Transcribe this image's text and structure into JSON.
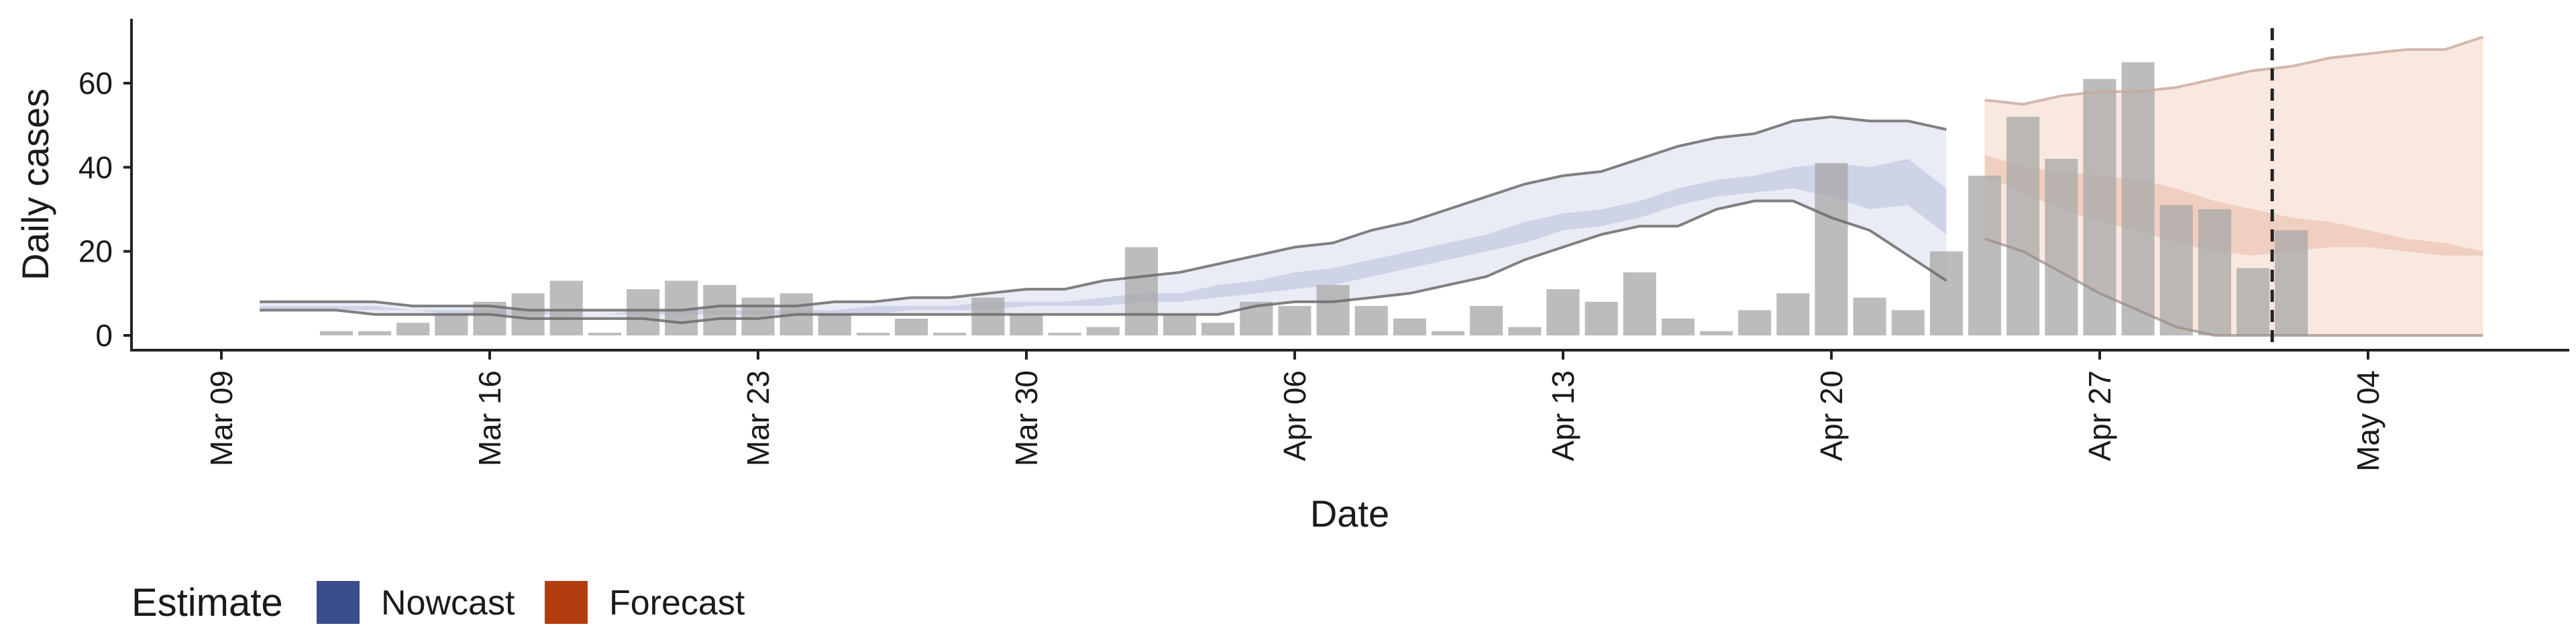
{
  "chart_data": {
    "type": "bar",
    "xlabel": "Date",
    "ylabel": "Daily cases",
    "x_ticks": [
      "Mar 09",
      "Mar 16",
      "Mar 23",
      "Mar 30",
      "Apr 06",
      "Apr 13",
      "Apr 20",
      "Apr 27",
      "May 04"
    ],
    "y_ticks": [
      0,
      20,
      40,
      60
    ],
    "xlim": [
      "2020-03-09",
      "2020-05-07"
    ],
    "ylim": [
      -3,
      75
    ],
    "grid": false,
    "forecast_date": "2020-05-01",
    "legend": {
      "title": "Estimate",
      "position": "bottom-left",
      "items": [
        {
          "label": "Nowcast",
          "color": "#3B4E8C"
        },
        {
          "label": "Forecast",
          "color": "#B33D0E"
        }
      ]
    },
    "bars": {
      "color": "#A9A9A9",
      "dates": [
        "2020-03-12",
        "2020-03-13",
        "2020-03-14",
        "2020-03-15",
        "2020-03-16",
        "2020-03-17",
        "2020-03-18",
        "2020-03-19",
        "2020-03-20",
        "2020-03-21",
        "2020-03-22",
        "2020-03-23",
        "2020-03-24",
        "2020-03-25",
        "2020-03-26",
        "2020-03-27",
        "2020-03-28",
        "2020-03-29",
        "2020-03-30",
        "2020-03-31",
        "2020-04-01",
        "2020-04-02",
        "2020-04-03",
        "2020-04-04",
        "2020-04-05",
        "2020-04-06",
        "2020-04-07",
        "2020-04-08",
        "2020-04-09",
        "2020-04-10",
        "2020-04-11",
        "2020-04-12",
        "2020-04-13",
        "2020-04-14",
        "2020-04-15",
        "2020-04-16",
        "2020-04-17",
        "2020-04-18",
        "2020-04-19",
        "2020-04-20",
        "2020-04-21",
        "2020-04-22",
        "2020-04-23",
        "2020-04-24",
        "2020-04-25",
        "2020-04-26",
        "2020-04-27",
        "2020-04-28",
        "2020-04-29",
        "2020-04-30",
        "2020-05-01",
        "2020-05-02"
      ],
      "values": [
        1,
        1,
        3,
        5,
        8,
        10,
        13,
        0,
        11,
        13,
        12,
        9,
        10,
        5,
        0,
        4,
        0,
        9,
        5,
        0,
        2,
        21,
        5,
        3,
        8,
        7,
        12,
        7,
        4,
        1,
        7,
        2,
        11,
        8,
        15,
        4,
        1,
        6,
        10,
        41,
        9,
        6,
        20,
        38,
        52,
        42,
        61,
        65,
        31,
        30,
        16,
        25
      ]
    },
    "series": [
      {
        "name": "Nowcast",
        "dates": [
          "2020-03-10",
          "2020-03-11",
          "2020-03-12",
          "2020-03-13",
          "2020-03-14",
          "2020-03-15",
          "2020-03-16",
          "2020-03-17",
          "2020-03-18",
          "2020-03-19",
          "2020-03-20",
          "2020-03-21",
          "2020-03-22",
          "2020-03-23",
          "2020-03-24",
          "2020-03-25",
          "2020-03-26",
          "2020-03-27",
          "2020-03-28",
          "2020-03-29",
          "2020-03-30",
          "2020-03-31",
          "2020-04-01",
          "2020-04-02",
          "2020-04-03",
          "2020-04-04",
          "2020-04-05",
          "2020-04-06",
          "2020-04-07",
          "2020-04-08",
          "2020-04-09",
          "2020-04-10",
          "2020-04-11",
          "2020-04-12",
          "2020-04-13",
          "2020-04-14",
          "2020-04-15",
          "2020-04-16",
          "2020-04-17",
          "2020-04-18",
          "2020-04-19",
          "2020-04-20",
          "2020-04-21",
          "2020-04-22",
          "2020-04-23"
        ],
        "upper90": [
          8,
          8,
          8,
          8,
          7,
          7,
          7,
          6,
          6,
          6,
          6,
          6,
          7,
          7,
          7,
          8,
          8,
          9,
          9,
          10,
          11,
          11,
          13,
          14,
          15,
          17,
          19,
          21,
          22,
          25,
          27,
          30,
          33,
          36,
          38,
          39,
          42,
          45,
          47,
          48,
          51,
          52,
          51,
          51,
          49
        ],
        "upper50": [
          7,
          7,
          7,
          7,
          6,
          6,
          6,
          6,
          5,
          5,
          6,
          6,
          6,
          6,
          6,
          6,
          7,
          7,
          7,
          8,
          8,
          8,
          9,
          10,
          10,
          12,
          13,
          15,
          16,
          18,
          20,
          22,
          24,
          27,
          29,
          30,
          32,
          35,
          37,
          38,
          40,
          41,
          40,
          42,
          35
        ],
        "lower50": [
          6,
          6,
          6,
          6,
          6,
          5,
          5,
          5,
          5,
          5,
          5,
          5,
          5,
          5,
          5,
          5,
          5,
          6,
          6,
          6,
          7,
          7,
          7,
          8,
          8,
          9,
          10,
          11,
          12,
          14,
          16,
          18,
          20,
          22,
          25,
          26,
          28,
          31,
          33,
          34,
          35,
          33,
          30,
          31,
          24
        ],
        "lower90": [
          6,
          6,
          6,
          5,
          5,
          5,
          5,
          4,
          4,
          4,
          4,
          3,
          4,
          4,
          5,
          5,
          5,
          5,
          5,
          5,
          5,
          5,
          5,
          5,
          5,
          5,
          7,
          8,
          8,
          9,
          10,
          12,
          14,
          18,
          21,
          24,
          26,
          26,
          30,
          32,
          32,
          28,
          25,
          19,
          13
        ]
      },
      {
        "name": "Forecast",
        "dates": [
          "2020-04-24",
          "2020-04-25",
          "2020-04-26",
          "2020-04-27",
          "2020-04-28",
          "2020-04-29",
          "2020-04-30",
          "2020-05-01",
          "2020-05-02",
          "2020-05-03",
          "2020-05-04",
          "2020-05-05",
          "2020-05-06",
          "2020-05-07"
        ],
        "upper90": [
          56,
          55,
          57,
          58,
          58,
          59,
          61,
          63,
          64,
          66,
          67,
          68,
          68,
          71
        ],
        "upper50": [
          43,
          40,
          39,
          38,
          37,
          35,
          32,
          30,
          28,
          27,
          25,
          23,
          22,
          20
        ],
        "lower50": [
          38,
          34,
          30,
          27,
          25,
          22,
          20,
          19,
          20,
          21,
          21,
          20,
          19,
          19
        ],
        "lower90": [
          23,
          20,
          15,
          10,
          6,
          2,
          0,
          0,
          0,
          0,
          0,
          0,
          0,
          0
        ]
      }
    ]
  }
}
